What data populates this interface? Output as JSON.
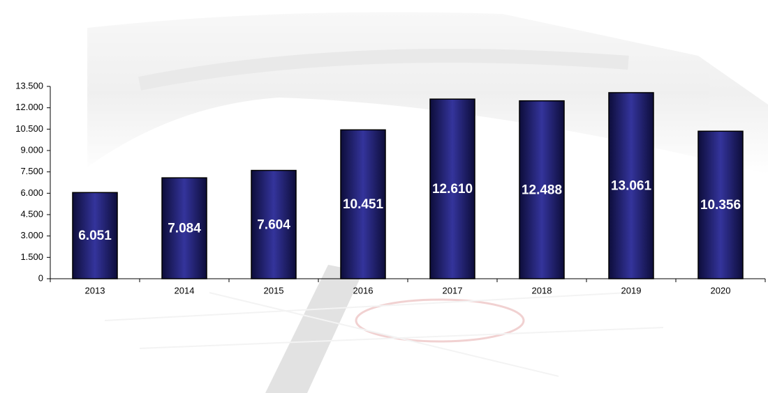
{
  "chart_data": {
    "type": "bar",
    "categories": [
      "2013",
      "2014",
      "2015",
      "2016",
      "2017",
      "2018",
      "2019",
      "2020"
    ],
    "values": [
      6051,
      7084,
      7604,
      10451,
      12610,
      12488,
      13061,
      10356
    ],
    "value_labels": [
      "6.051",
      "7.084",
      "7.604",
      "10.451",
      "12.610",
      "12.488",
      "13.061",
      "10.356"
    ],
    "color": "#2b2b8c",
    "ylim": [
      0,
      13500
    ],
    "yticks": [
      0,
      {
        "value": 1500,
        "label": "1.500"
      },
      {
        "value": 3000,
        "label": "3.000"
      },
      {
        "value": 4500,
        "label": "4.500"
      },
      {
        "value": 6000,
        "label": "6.000"
      },
      {
        "value": 7500,
        "label": "7.500"
      },
      {
        "value": 9000,
        "label": "9.000"
      },
      {
        "value": 10500,
        "label": "10.500"
      },
      {
        "value": 12000,
        "label": "12.000"
      },
      {
        "value": 13500,
        "label": "13.500"
      }
    ],
    "grid": false
  }
}
